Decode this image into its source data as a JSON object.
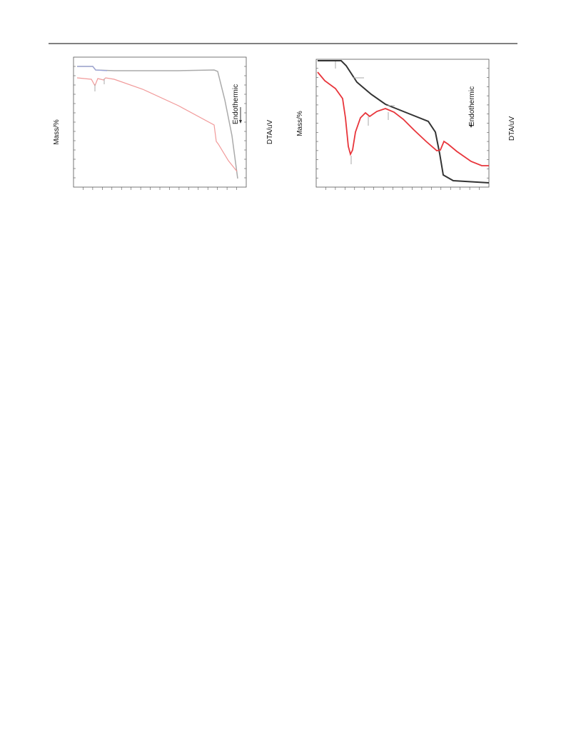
{
  "figures": [
    {
      "y_label": "Mass/%",
      "annotation": "Endothermic",
      "y2_label": "DTA/uV"
    },
    {
      "y_label": "Mass/%",
      "annotation": "Endothermic",
      "y2_label": "DTA/uV"
    }
  ]
}
